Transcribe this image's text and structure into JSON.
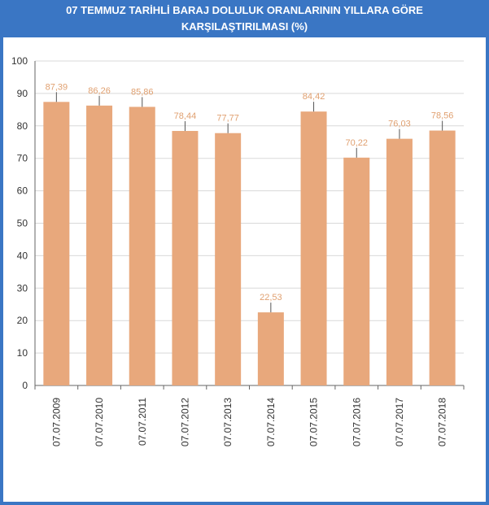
{
  "title_line1": "07 TEMMUZ TARİHLİ BARAJ DOLULUK ORANLARININ YILLARA GÖRE",
  "title_line2": "KARŞILAŞTIRILMASI (%)",
  "colors": {
    "frame": "#3a76c4",
    "bar": "#e8a87c",
    "grid": "#d9d9d9",
    "value_label": "#e0a070",
    "connector": "#555555"
  },
  "chart_data": {
    "type": "bar",
    "title": "07 TEMMUZ TARİHLİ BARAJ DOLULUK ORANLARININ YILLARA GÖRE KARŞILAŞTIRILMASI (%)",
    "categories": [
      "07.07.2009",
      "07.07.2010",
      "07.07.2011",
      "07.07.2012",
      "07.07.2013",
      "07.07.2014",
      "07.07.2015",
      "07.07.2016",
      "07.07.2017",
      "07.07.2018"
    ],
    "values": [
      87.39,
      86.26,
      85.86,
      78.44,
      77.77,
      22.53,
      84.42,
      70.22,
      76.03,
      78.56
    ],
    "value_labels": [
      "87,39",
      "86,26",
      "85,86",
      "78,44",
      "77,77",
      "22,53",
      "84,42",
      "70,22",
      "76,03",
      "78,56"
    ],
    "yticks": [
      "0",
      "10",
      "20",
      "30",
      "40",
      "50",
      "60",
      "70",
      "80",
      "90",
      "100"
    ],
    "ylim": [
      0,
      100
    ],
    "grid": true,
    "legend": "none"
  }
}
